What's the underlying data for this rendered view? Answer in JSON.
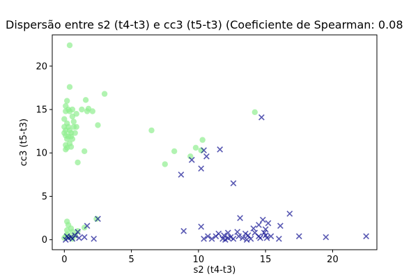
{
  "chart_data": {
    "type": "scatter",
    "title": "Dispersão entre s2 (t4-t3) e cc3 (t5-t3) (Coeficiente de Spearman: 0.08",
    "xlabel": "s2 (t4-t3)",
    "ylabel": "cc3 (t5-t3)",
    "xlim": [
      -0.9,
      23.3
    ],
    "ylim": [
      -1.15,
      23.6
    ],
    "xticks": [
      0,
      5,
      10,
      15,
      20
    ],
    "yticks": [
      0,
      5,
      10,
      15,
      20
    ],
    "grid": false,
    "legend": "none",
    "series": [
      {
        "marker": "circle",
        "color": "#90ee90",
        "points": [
          [
            0.4,
            22.4
          ],
          [
            0.4,
            17.6
          ],
          [
            1.6,
            16.1
          ],
          [
            0.2,
            16.0
          ],
          [
            3.0,
            16.8
          ],
          [
            0.1,
            15.4
          ],
          [
            0.3,
            15.0
          ],
          [
            0.6,
            15.0
          ],
          [
            1.3,
            15.0
          ],
          [
            1.8,
            15.1
          ],
          [
            2.1,
            14.8
          ],
          [
            1.7,
            14.8
          ],
          [
            0.1,
            14.8
          ],
          [
            0.4,
            14.8
          ],
          [
            0.9,
            14.5
          ],
          [
            0.6,
            14.2
          ],
          [
            0.0,
            13.9
          ],
          [
            0.7,
            13.6
          ],
          [
            0.2,
            13.4
          ],
          [
            0.0,
            13.0
          ],
          [
            0.3,
            13.0
          ],
          [
            0.7,
            13.0
          ],
          [
            0.9,
            13.0
          ],
          [
            2.5,
            13.2
          ],
          [
            0.1,
            12.6
          ],
          [
            0.4,
            12.6
          ],
          [
            0.0,
            12.3
          ],
          [
            0.5,
            12.3
          ],
          [
            0.8,
            12.3
          ],
          [
            0.1,
            12.0
          ],
          [
            0.3,
            11.9
          ],
          [
            0.5,
            11.9
          ],
          [
            0.2,
            11.6
          ],
          [
            0.6,
            11.6
          ],
          [
            0.4,
            11.1
          ],
          [
            0.1,
            10.9
          ],
          [
            0.5,
            10.7
          ],
          [
            0.2,
            10.6
          ],
          [
            0.1,
            10.4
          ],
          [
            1.5,
            10.2
          ],
          [
            1.0,
            8.9
          ],
          [
            6.5,
            12.6
          ],
          [
            8.2,
            10.2
          ],
          [
            9.8,
            10.6
          ],
          [
            10.3,
            11.5
          ],
          [
            10.2,
            10.3
          ],
          [
            9.4,
            9.6
          ],
          [
            7.5,
            8.7
          ],
          [
            14.2,
            14.7
          ],
          [
            0.2,
            2.1
          ],
          [
            0.3,
            1.7
          ],
          [
            0.5,
            1.3
          ],
          [
            0.2,
            1.1
          ],
          [
            0.6,
            0.9
          ],
          [
            1.0,
            1.0
          ],
          [
            0.2,
            0.6
          ],
          [
            0.1,
            0.4
          ],
          [
            0.0,
            0.2
          ],
          [
            0.4,
            0.3
          ],
          [
            0.8,
            0.5
          ],
          [
            1.5,
            1.4
          ],
          [
            2.4,
            2.4
          ],
          [
            0.6,
            0.1
          ]
        ]
      },
      {
        "marker": "x",
        "color": "#00008b",
        "points": [
          [
            14.7,
            14.1
          ],
          [
            11.6,
            10.4
          ],
          [
            10.4,
            10.3
          ],
          [
            10.6,
            9.6
          ],
          [
            9.5,
            9.2
          ],
          [
            10.2,
            8.2
          ],
          [
            8.7,
            7.5
          ],
          [
            12.6,
            6.5
          ],
          [
            16.8,
            3.0
          ],
          [
            13.1,
            2.5
          ],
          [
            14.8,
            2.3
          ],
          [
            15.2,
            1.9
          ],
          [
            14.5,
            1.7
          ],
          [
            10.2,
            1.5
          ],
          [
            16.1,
            1.6
          ],
          [
            14.1,
            1.3
          ],
          [
            15.0,
            1.2
          ],
          [
            8.9,
            1.0
          ],
          [
            11.5,
            0.7
          ],
          [
            12.2,
            0.8
          ],
          [
            12.9,
            0.9
          ],
          [
            13.5,
            0.7
          ],
          [
            14.2,
            0.8
          ],
          [
            14.9,
            0.8
          ],
          [
            10.7,
            0.4
          ],
          [
            11.3,
            0.4
          ],
          [
            11.9,
            0.5
          ],
          [
            12.4,
            0.3
          ],
          [
            13.0,
            0.4
          ],
          [
            13.7,
            0.5
          ],
          [
            14.5,
            0.4
          ],
          [
            15.0,
            0.5
          ],
          [
            15.4,
            0.4
          ],
          [
            10.4,
            0.1
          ],
          [
            11.0,
            0.1
          ],
          [
            11.8,
            0.1
          ],
          [
            12.2,
            0.2
          ],
          [
            12.6,
            0.1
          ],
          [
            13.3,
            0.2
          ],
          [
            13.9,
            0.1
          ],
          [
            14.6,
            0.2
          ],
          [
            15.1,
            0.2
          ],
          [
            16.0,
            0.1
          ],
          [
            17.5,
            0.4
          ],
          [
            19.5,
            0.3
          ],
          [
            22.5,
            0.4
          ],
          [
            12.0,
            0.0
          ],
          [
            13.6,
            0.0
          ],
          [
            2.5,
            2.4
          ],
          [
            1.7,
            1.6
          ],
          [
            1.0,
            0.9
          ],
          [
            1.5,
            0.3
          ],
          [
            2.2,
            0.1
          ],
          [
            0.8,
            0.5
          ],
          [
            0.5,
            0.3
          ],
          [
            0.3,
            0.2
          ],
          [
            0.1,
            0.0
          ],
          [
            0.6,
            0.1
          ],
          [
            1.1,
            0.2
          ],
          [
            0.2,
            0.4
          ]
        ]
      }
    ]
  }
}
